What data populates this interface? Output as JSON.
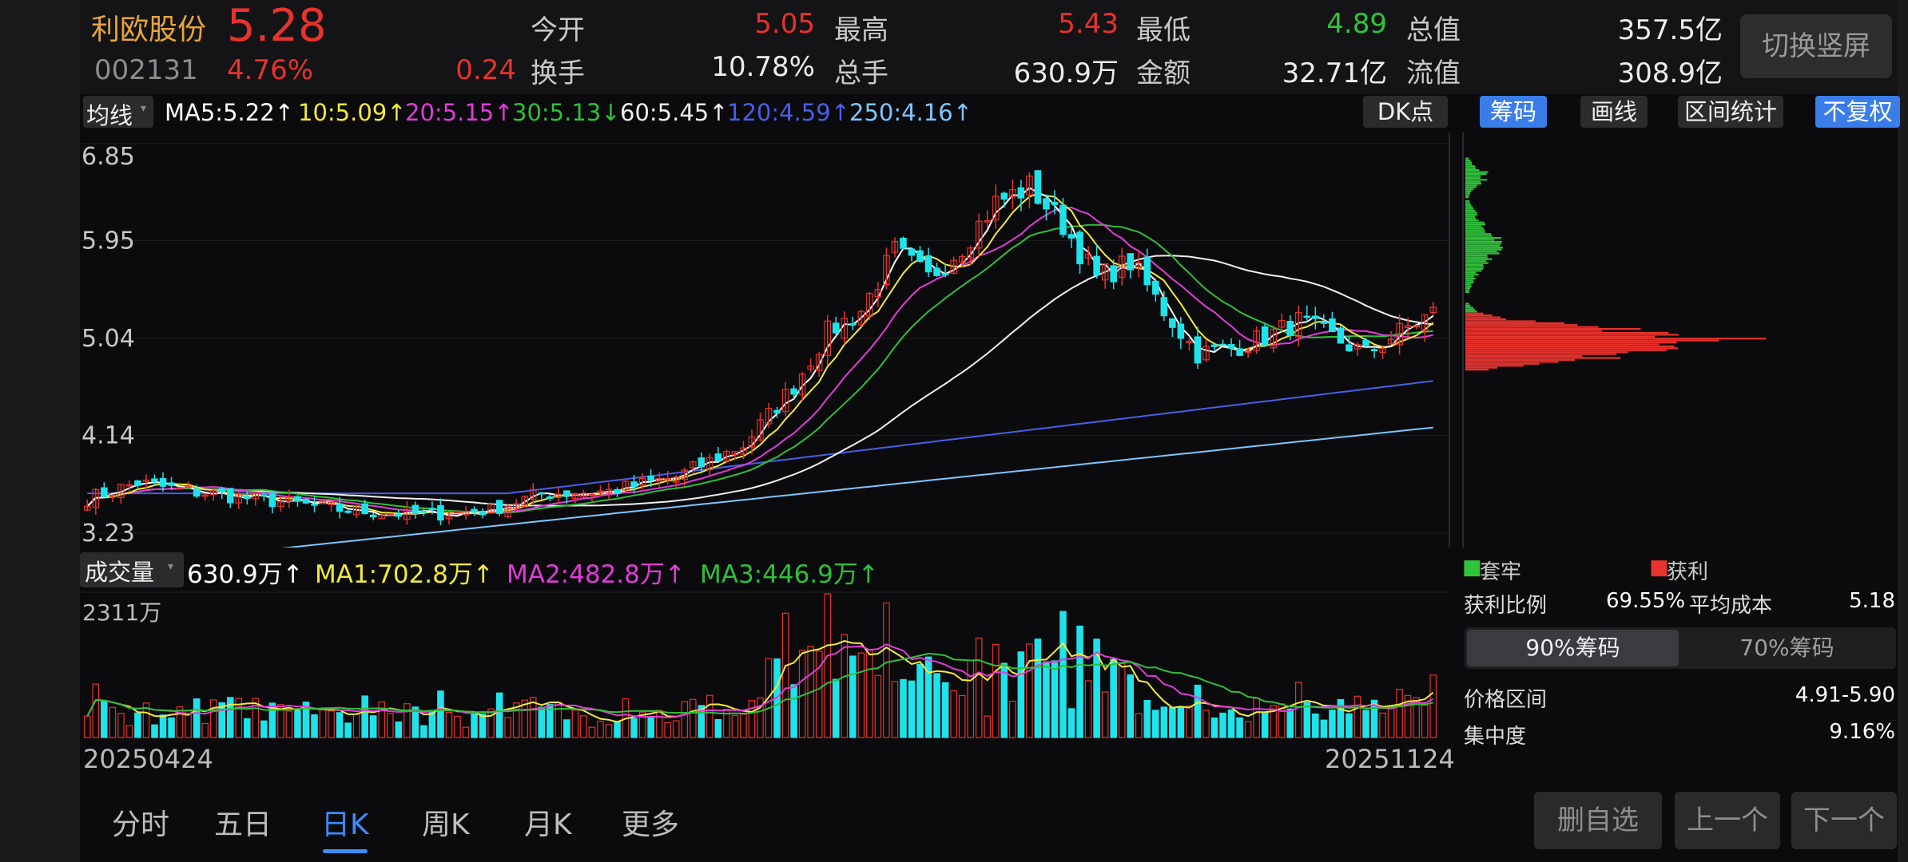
{
  "header": {
    "stock_name": "利欧股份",
    "price": "5.28",
    "code": "002131",
    "change_pct": "4.76%",
    "change": "0.24",
    "stats": {
      "open_label": "今开",
      "open": "5.05",
      "high_label": "最高",
      "high": "5.43",
      "low_label": "最低",
      "low": "4.89",
      "mktcap_label": "总值",
      "mktcap": "357.5亿",
      "turnover_label": "换手",
      "turnover": "10.78%",
      "volume_label": "总手",
      "volume": "630.9万",
      "amount_label": "金额",
      "amount": "32.71亿",
      "float_label": "流值",
      "float_cap": "308.9亿"
    },
    "switch_label": "切换竖屏"
  },
  "ma_bar": {
    "selector": "均线",
    "ma5": "MA5:5.22↑",
    "ma10": "10:5.09↑",
    "ma20": "20:5.15↑",
    "ma30": "30:5.13↓",
    "ma60": "60:5.45↑",
    "ma120": "120:4.59↑",
    "ma250": "250:4.16↑",
    "dk": "DK点",
    "chips": "筹码",
    "draw": "画线",
    "range": "区间统计",
    "adjust": "不复权"
  },
  "colors": {
    "up": "#e8322c",
    "down": "#1fe3ea",
    "ma5": "#ffffff",
    "ma10": "#f2ea3a",
    "ma20": "#e23bd8",
    "ma30": "#2fbf3a",
    "ma60": "#f0f0f0",
    "ma120": "#4a5ee8",
    "ma250": "#7ec6ff"
  },
  "price_axis": {
    "labels": [
      "6.85",
      "5.95",
      "5.04",
      "4.14",
      "3.23"
    ]
  },
  "chart_data": {
    "type": "candlestick",
    "y_range": [
      3.23,
      6.85
    ],
    "x_start": "20250424",
    "x_end": "20251124",
    "keypoints": [
      [
        0,
        3.55
      ],
      [
        6,
        3.7
      ],
      [
        12,
        3.62
      ],
      [
        20,
        3.55
      ],
      [
        30,
        3.45
      ],
      [
        40,
        3.4
      ],
      [
        48,
        3.45
      ],
      [
        54,
        3.6
      ],
      [
        62,
        3.62
      ],
      [
        70,
        3.75
      ],
      [
        78,
        4.05
      ],
      [
        84,
        4.6
      ],
      [
        88,
        5.1
      ],
      [
        92,
        5.3
      ],
      [
        96,
        5.85
      ],
      [
        100,
        5.6
      ],
      [
        104,
        5.9
      ],
      [
        108,
        6.3
      ],
      [
        112,
        6.45
      ],
      [
        116,
        6.1
      ],
      [
        120,
        5.6
      ],
      [
        124,
        5.75
      ],
      [
        128,
        5.3
      ],
      [
        132,
        4.9
      ],
      [
        136,
        4.95
      ],
      [
        140,
        5.05
      ],
      [
        144,
        5.2
      ],
      [
        148,
        5.05
      ],
      [
        152,
        4.9
      ],
      [
        156,
        5.1
      ],
      [
        160,
        5.28
      ]
    ],
    "volume_label": "成交量",
    "volume_now": "630.9万↑",
    "volume_ma1": "MA1:702.8万↑",
    "volume_ma2": "MA2:482.8万↑",
    "volume_ma3": "MA3:446.9万↑",
    "volume_max_label": "2311万",
    "chip_price_range": [
      3.23,
      6.85
    ],
    "chip_peak_price": 5.0,
    "chip_current_price": 5.28
  },
  "chips": {
    "legend_trapped": "套牢",
    "legend_profit": "获利",
    "profit_ratio_label": "获利比例",
    "profit_ratio": "69.55%",
    "avg_cost_label": "平均成本",
    "avg_cost": "5.18",
    "tab_90": "90%筹码",
    "tab_70": "70%筹码",
    "price_range_label": "价格区间",
    "price_range": "4.91-5.90",
    "concentration_label": "集中度",
    "concentration": "9.16%"
  },
  "tabs": [
    "分时",
    "五日",
    "日K",
    "周K",
    "月K",
    "更多"
  ],
  "buttons": {
    "remove": "删自选",
    "prev": "上一个",
    "next": "下一个"
  }
}
